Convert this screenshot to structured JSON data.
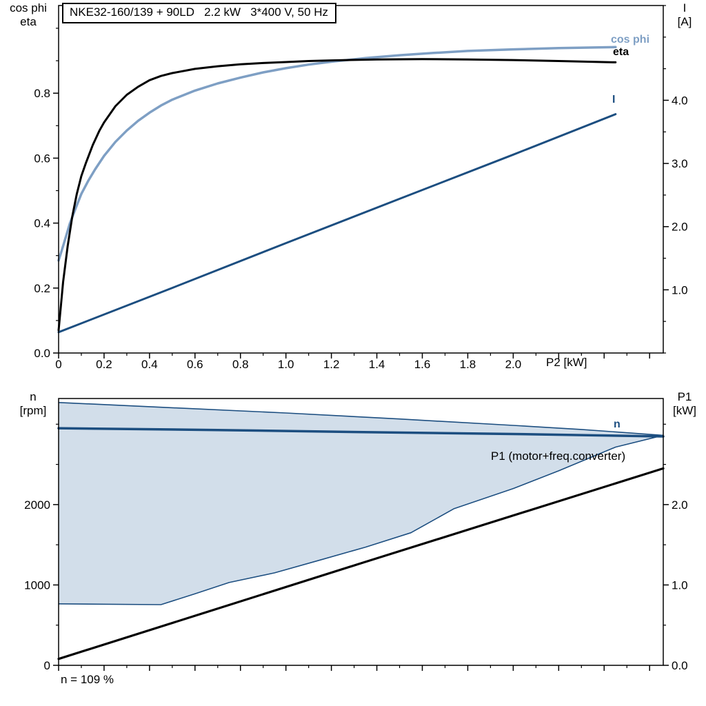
{
  "colors": {
    "frame": "#000000",
    "cos_phi_curve": "#7E9FC4",
    "eta_curve": "#000000",
    "current_curve": "#1C4E80",
    "n_curve": "#1C4E80",
    "p1_curve": "#000000",
    "region_fill": "#D2DEEA",
    "region_stroke": "#1C4E80"
  },
  "chart_data": [
    {
      "type": "line",
      "title": "NKE32-160/139 + 90LD   2.2 kW   3*400 V, 50 Hz",
      "x": {
        "label": "P2 [kW]",
        "min": 0,
        "max": 2.66,
        "major_tick_step": 0.2,
        "minor_tick_step": 0.1,
        "tick_labels": [
          "0",
          "0.2",
          "0.4",
          "0.6",
          "0.8",
          "1.0",
          "1.2",
          "1.4",
          "1.6",
          "1.8",
          "2.0"
        ]
      },
      "y_left": {
        "label_lines": [
          "cos phi",
          "eta"
        ],
        "min": 0,
        "max": 1.07,
        "ticks": [
          0.0,
          0.2,
          0.4,
          0.6,
          0.8
        ],
        "tick_labels": [
          "0.0",
          "0.2",
          "0.4",
          "0.6",
          "0.8"
        ],
        "minor_tick_step": 0.1
      },
      "y_right": {
        "label_lines": [
          "I",
          "[A]"
        ],
        "min": 0,
        "max": 5.5,
        "ticks": [
          1.0,
          2.0,
          3.0,
          4.0
        ],
        "tick_labels": [
          "1.0",
          "2.0",
          "3.0",
          "4.0"
        ],
        "minor_tick_step": 0.5
      },
      "legend_position": "right-of-curves",
      "grid": false,
      "series": [
        {
          "name": "cos phi",
          "axis": "left",
          "color": "#7E9FC4",
          "width": 3.5,
          "points": [
            [
              0,
              0.285
            ],
            [
              0.02,
              0.33
            ],
            [
              0.05,
              0.4
            ],
            [
              0.08,
              0.455
            ],
            [
              0.1,
              0.49
            ],
            [
              0.13,
              0.53
            ],
            [
              0.16,
              0.565
            ],
            [
              0.2,
              0.607
            ],
            [
              0.25,
              0.65
            ],
            [
              0.3,
              0.685
            ],
            [
              0.35,
              0.715
            ],
            [
              0.4,
              0.74
            ],
            [
              0.45,
              0.762
            ],
            [
              0.5,
              0.78
            ],
            [
              0.6,
              0.808
            ],
            [
              0.7,
              0.83
            ],
            [
              0.8,
              0.848
            ],
            [
              0.9,
              0.864
            ],
            [
              1.0,
              0.877
            ],
            [
              1.1,
              0.888
            ],
            [
              1.2,
              0.897
            ],
            [
              1.35,
              0.908
            ],
            [
              1.5,
              0.917
            ],
            [
              1.65,
              0.924
            ],
            [
              1.8,
              0.93
            ],
            [
              2.0,
              0.935
            ],
            [
              2.2,
              0.939
            ],
            [
              2.45,
              0.942
            ]
          ]
        },
        {
          "name": "eta",
          "axis": "left",
          "color": "#000000",
          "width": 3,
          "points": [
            [
              0,
              0.07
            ],
            [
              0.02,
              0.22
            ],
            [
              0.04,
              0.33
            ],
            [
              0.06,
              0.42
            ],
            [
              0.08,
              0.49
            ],
            [
              0.1,
              0.545
            ],
            [
              0.12,
              0.585
            ],
            [
              0.15,
              0.64
            ],
            [
              0.18,
              0.685
            ],
            [
              0.2,
              0.71
            ],
            [
              0.25,
              0.76
            ],
            [
              0.3,
              0.795
            ],
            [
              0.35,
              0.82
            ],
            [
              0.4,
              0.84
            ],
            [
              0.45,
              0.853
            ],
            [
              0.5,
              0.862
            ],
            [
              0.6,
              0.875
            ],
            [
              0.7,
              0.883
            ],
            [
              0.8,
              0.889
            ],
            [
              0.9,
              0.893
            ],
            [
              1.0,
              0.896
            ],
            [
              1.1,
              0.899
            ],
            [
              1.2,
              0.901
            ],
            [
              1.4,
              0.904
            ],
            [
              1.6,
              0.905
            ],
            [
              1.8,
              0.904
            ],
            [
              2.0,
              0.902
            ],
            [
              2.2,
              0.899
            ],
            [
              2.45,
              0.895
            ]
          ]
        },
        {
          "name": "I",
          "axis": "right",
          "color": "#1C4E80",
          "width": 3,
          "points": [
            [
              0,
              0.33
            ],
            [
              0.5,
              1.03
            ],
            [
              1.0,
              1.74
            ],
            [
              1.5,
              2.44
            ],
            [
              2.0,
              3.14
            ],
            [
              2.45,
              3.78
            ]
          ]
        }
      ]
    },
    {
      "type": "line",
      "x": {
        "label": "",
        "min": 0,
        "max": 2.66,
        "major_tick_step": 0.2,
        "minor_tick_step": 0.1,
        "tick_labels": []
      },
      "y_left": {
        "label_lines": [
          "n",
          "[rpm]"
        ],
        "min": 0,
        "max": 3320,
        "ticks": [
          0,
          1000,
          2000
        ],
        "tick_labels": [
          "0",
          "1000",
          "2000"
        ],
        "minor_tick_step": 500
      },
      "y_right": {
        "label_lines": [
          "P1",
          "[kW]"
        ],
        "min": 0,
        "max": 3.32,
        "ticks": [
          0.0,
          1.0,
          2.0
        ],
        "tick_labels": [
          "0.0",
          "1.0",
          "2.0"
        ],
        "minor_tick_step": 0.5
      },
      "grid": false,
      "region": {
        "name": "speed-control-range",
        "axis": "left",
        "fill": "#D2DEEA",
        "stroke": "#1C4E80",
        "stroke_width": 1.6,
        "upper": [
          [
            0,
            3270
          ],
          [
            0.5,
            3205
          ],
          [
            1.0,
            3140
          ],
          [
            1.5,
            3065
          ],
          [
            2.0,
            2985
          ],
          [
            2.3,
            2935
          ],
          [
            2.66,
            2862
          ]
        ],
        "lower": [
          [
            0,
            765
          ],
          [
            0.45,
            755
          ],
          [
            0.6,
            890
          ],
          [
            0.75,
            1030
          ],
          [
            0.95,
            1150
          ],
          [
            1.15,
            1310
          ],
          [
            1.35,
            1470
          ],
          [
            1.55,
            1650
          ],
          [
            1.74,
            1950
          ],
          [
            2.0,
            2200
          ],
          [
            2.2,
            2420
          ],
          [
            2.45,
            2715
          ],
          [
            2.66,
            2862
          ]
        ]
      },
      "series": [
        {
          "name": "n",
          "axis": "left",
          "color": "#1C4E80",
          "width": 3.5,
          "points": [
            [
              0,
              2950
            ],
            [
              0.7,
              2928
            ],
            [
              1.4,
              2900
            ],
            [
              2.0,
              2878
            ],
            [
              2.66,
              2848
            ]
          ]
        },
        {
          "name": "P1 (motor+freq.converter)",
          "axis": "right",
          "color": "#000000",
          "width": 3.2,
          "points": [
            [
              0,
              0.08
            ],
            [
              1.33,
              1.27
            ],
            [
              2.66,
              2.45
            ]
          ]
        }
      ],
      "annotation": "n = 109 %"
    }
  ]
}
